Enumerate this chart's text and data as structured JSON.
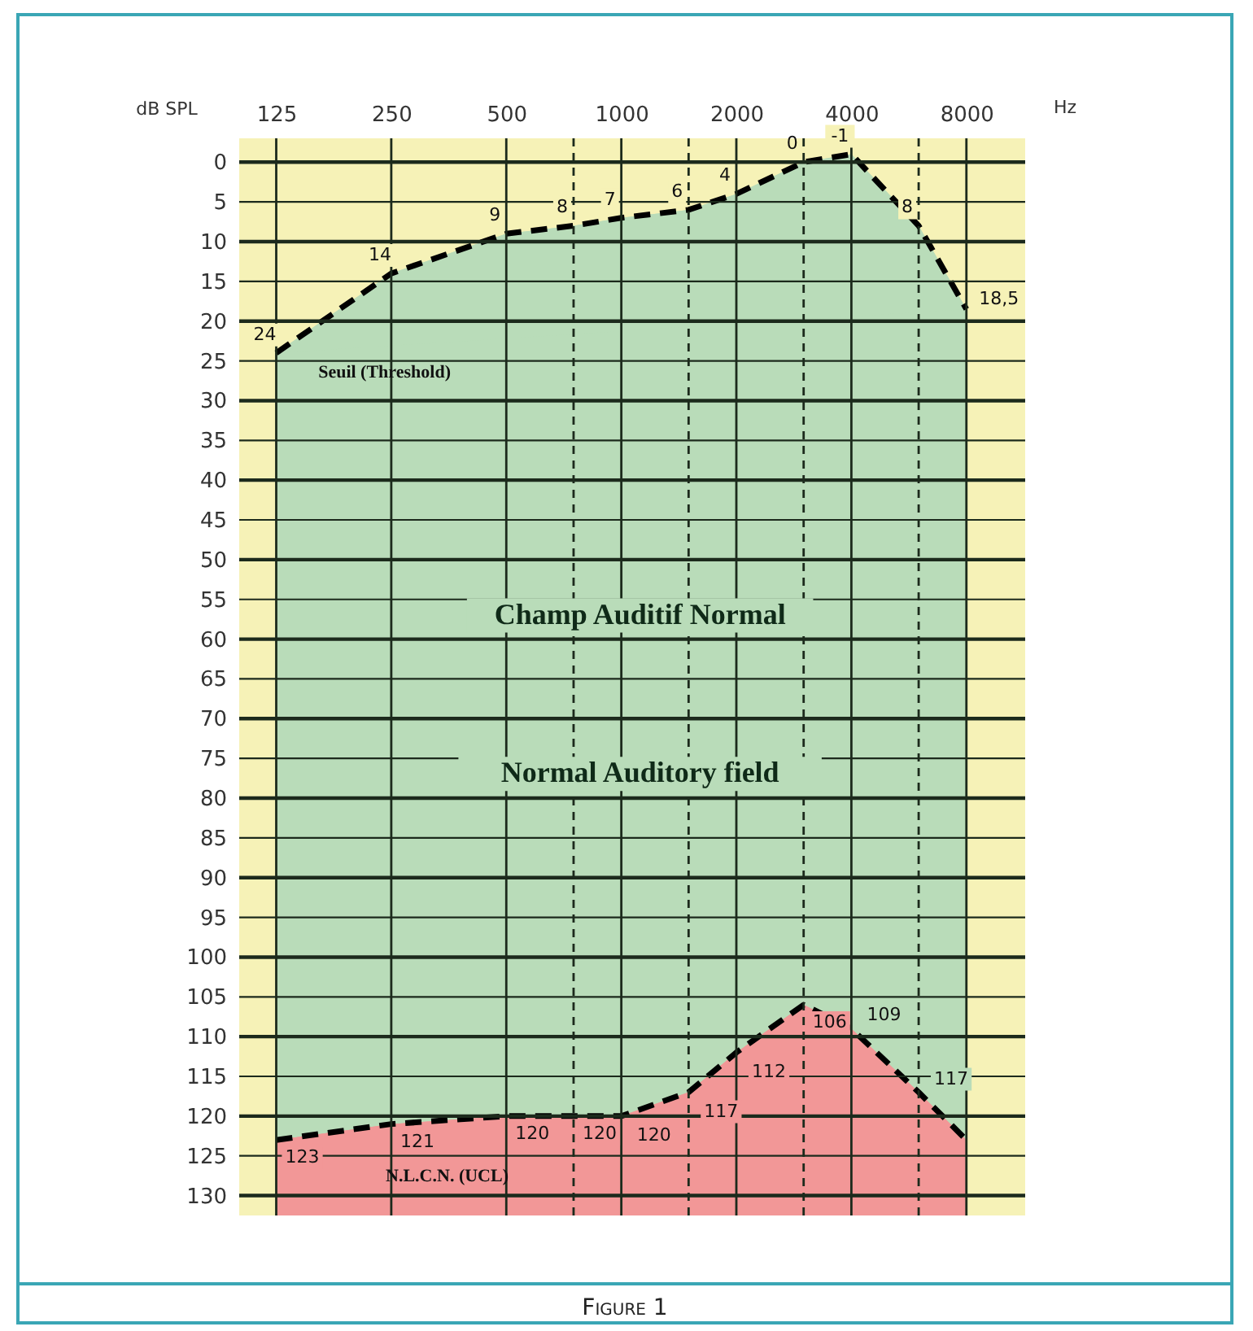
{
  "chart_data": {
    "type": "area",
    "xlabel": "Hz",
    "ylabel": "dB SPL",
    "log": "x",
    "legend": false,
    "grid": true,
    "x": [
      125,
      250,
      500,
      750,
      1000,
      1500,
      2000,
      3000,
      4000,
      6000,
      8000
    ],
    "xlim": [
      100,
      11400
    ],
    "xticks": [
      125,
      250,
      500,
      {
        "value": 750,
        "label": null
      },
      1000,
      {
        "value": 1500,
        "label": null
      },
      2000,
      {
        "value": 3000,
        "label": null
      },
      4000,
      {
        "value": 6000,
        "label": null
      },
      8000
    ],
    "ylim": [
      132.5,
      -3
    ],
    "yticks": [
      0,
      5,
      10,
      15,
      20,
      25,
      30,
      35,
      40,
      45,
      50,
      55,
      60,
      65,
      70,
      75,
      80,
      85,
      90,
      95,
      100,
      105,
      110,
      115,
      120,
      125,
      130
    ],
    "bands": [
      {
        "axis": "y",
        "from": -3,
        "to": 132.5,
        "color": "#f6f2b7"
      }
    ],
    "line_style": "dashed",
    "series": [
      {
        "name": "Seuil (Threshold)",
        "color": "#b9dcb9",
        "values": [
          24,
          14,
          9,
          8,
          7,
          6,
          4,
          0,
          -1,
          8,
          18.5
        ],
        "value_labels": [
          "24",
          "14",
          "9",
          "8",
          "7",
          "6",
          "4",
          "0",
          "-1",
          "8",
          "18,5"
        ]
      },
      {
        "name": "N.L.C.N. (UCL)",
        "color": "#f29797",
        "values": [
          123,
          121,
          120,
          120,
          120,
          117,
          112,
          106,
          109,
          117,
          123
        ],
        "value_labels": [
          "123",
          "121",
          "120",
          "120",
          "120",
          "117",
          "112",
          "106",
          "109",
          "117",
          null
        ]
      }
    ],
    "annotations": [
      "Champ Auditif Normal",
      "Normal Auditory field",
      "Figure 1"
    ]
  }
}
